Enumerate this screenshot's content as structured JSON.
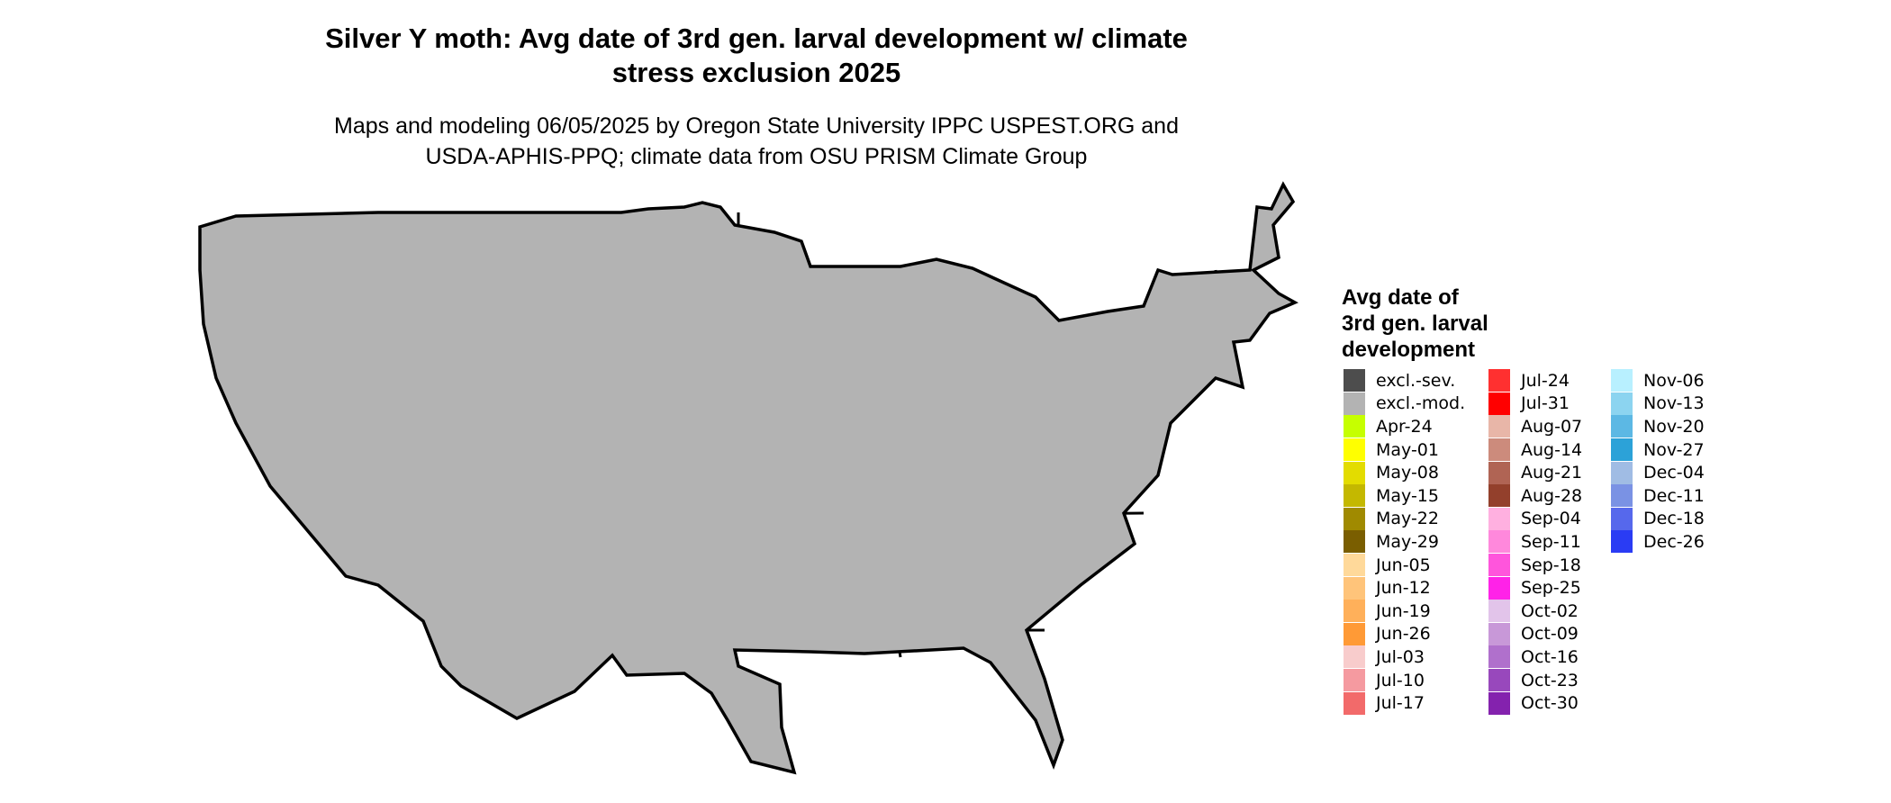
{
  "title_line1": "Silver Y moth: Avg date of 3rd gen. larval development w/ climate",
  "title_line2": "stress exclusion 2025",
  "subtitle_line1": "Maps and modeling 06/05/2025 by Oregon State University IPPC USPEST.ORG and",
  "subtitle_line2": "USDA-APHIS-PPQ; climate data from OSU PRISM Climate Group",
  "legend": {
    "title_line1": "Avg date of",
    "title_line2": "3rd gen. larval",
    "title_line3": "development",
    "columns": [
      [
        {
          "label": "excl.-sev.",
          "color": "#4d4d4d"
        },
        {
          "label": "excl.-mod.",
          "color": "#b3b3b3"
        },
        {
          "label": "Apr-24",
          "color": "#c6ff00"
        },
        {
          "label": "May-01",
          "color": "#ffff00"
        },
        {
          "label": "May-08",
          "color": "#e3dc00"
        },
        {
          "label": "May-15",
          "color": "#c4b800"
        },
        {
          "label": "May-22",
          "color": "#a08a00"
        },
        {
          "label": "May-29",
          "color": "#7a5e00"
        },
        {
          "label": "Jun-05",
          "color": "#ffd99a"
        },
        {
          "label": "Jun-12",
          "color": "#ffc47a"
        },
        {
          "label": "Jun-19",
          "color": "#ffb05a"
        },
        {
          "label": "Jun-26",
          "color": "#ff9a36"
        },
        {
          "label": "Jul-03",
          "color": "#f8cccc"
        },
        {
          "label": "Jul-10",
          "color": "#f59aa0"
        },
        {
          "label": "Jul-17",
          "color": "#f26a6a"
        }
      ],
      [
        {
          "label": "Jul-24",
          "color": "#ff3030"
        },
        {
          "label": "Jul-31",
          "color": "#ff0000"
        },
        {
          "label": "Aug-07",
          "color": "#e8b6a8"
        },
        {
          "label": "Aug-14",
          "color": "#cc8b7c"
        },
        {
          "label": "Aug-21",
          "color": "#b06454"
        },
        {
          "label": "Aug-28",
          "color": "#93402c"
        },
        {
          "label": "Sep-04",
          "color": "#ffb0e0"
        },
        {
          "label": "Sep-11",
          "color": "#ff88dc"
        },
        {
          "label": "Sep-18",
          "color": "#ff55dc"
        },
        {
          "label": "Sep-25",
          "color": "#ff22e8"
        },
        {
          "label": "Oct-02",
          "color": "#e2c4ea"
        },
        {
          "label": "Oct-09",
          "color": "#c898d8"
        },
        {
          "label": "Oct-16",
          "color": "#b070cc"
        },
        {
          "label": "Oct-23",
          "color": "#9848bc"
        },
        {
          "label": "Oct-30",
          "color": "#8422ae"
        }
      ],
      [
        {
          "label": "Nov-06",
          "color": "#b8f0ff"
        },
        {
          "label": "Nov-13",
          "color": "#8cd4f0"
        },
        {
          "label": "Nov-20",
          "color": "#5cb8e4"
        },
        {
          "label": "Nov-27",
          "color": "#2ca2d8"
        },
        {
          "label": "Dec-04",
          "color": "#a0bce4"
        },
        {
          "label": "Dec-11",
          "color": "#7a92e4"
        },
        {
          "label": "Dec-18",
          "color": "#5668ec"
        },
        {
          "label": "Dec-26",
          "color": "#2a3cf4"
        }
      ]
    ]
  },
  "map_colors": {
    "excluded": "#b3b3b3",
    "state_border": "#000000",
    "late_summer": "#ff0000",
    "mid_summer": "#f8cccc",
    "early_summer": "#ffb05a",
    "may": "#a08a00",
    "aug_brown": "#b06454",
    "pink": "#ff55dc"
  }
}
